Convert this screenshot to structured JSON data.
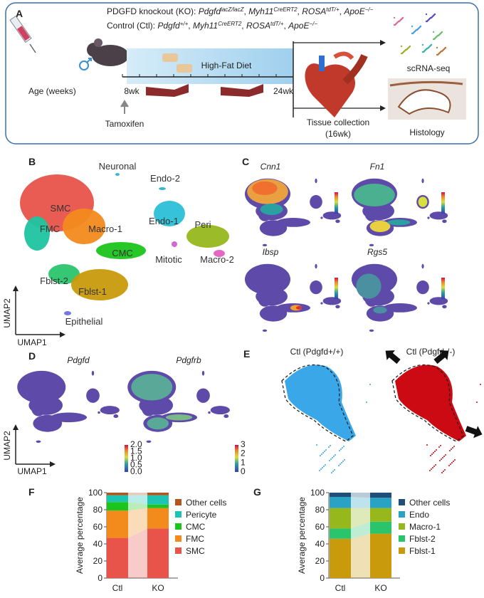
{
  "panel_a": {
    "letter": "A",
    "ko_line": [
      {
        "text": "PDGFD knockout (KO): ",
        "style": "plain"
      },
      {
        "text": "Pdgfd",
        "style": "italic"
      },
      {
        "text": "lacZ/lacZ",
        "style": "sup"
      },
      {
        "text": ", ",
        "style": "plain"
      },
      {
        "text": "Myh11",
        "style": "italic"
      },
      {
        "text": "CreERT2",
        "style": "sup"
      },
      {
        "text": ", ",
        "style": "plain"
      },
      {
        "text": "ROSA",
        "style": "italic"
      },
      {
        "text": "tdT/+",
        "style": "sup"
      },
      {
        "text": ", ",
        "style": "plain"
      },
      {
        "text": "ApoE",
        "style": "italic"
      },
      {
        "text": "−/−",
        "style": "sup"
      }
    ],
    "ctl_line": [
      {
        "text": "Control (Ctl): ",
        "style": "plain"
      },
      {
        "text": "Pdgfd",
        "style": "italic"
      },
      {
        "text": "+/+",
        "style": "sup"
      },
      {
        "text": ", ",
        "style": "plain"
      },
      {
        "text": "Myh11",
        "style": "italic"
      },
      {
        "text": "CreERT2",
        "style": "sup"
      },
      {
        "text": ", ",
        "style": "plain"
      },
      {
        "text": "ROSA",
        "style": "italic"
      },
      {
        "text": "tdT/+",
        "style": "sup"
      },
      {
        "text": ", ",
        "style": "plain"
      },
      {
        "text": "ApoE",
        "style": "italic"
      },
      {
        "text": "−/−",
        "style": "sup"
      }
    ],
    "diet": "High-Fat Diet",
    "age_label": "Age (weeks)",
    "start": "8wk",
    "end": "24wk",
    "injection": "Tamoxifen",
    "collection": "Tissue collection",
    "collection_time": "(16wk)",
    "scrna": "scRNA-seq",
    "histology": "Histology"
  },
  "panel_b": {
    "letter": "B",
    "clusters": [
      "Neuronal",
      "Endo-2",
      "SMC",
      "Endo-1",
      "Peri",
      "FMC",
      "Macro-1",
      "CMC",
      "Mitotic",
      "Macro-2",
      "Fblst-2",
      "Fblst-1",
      "Epithelial"
    ],
    "axis_x": "UMAP1",
    "axis_y": "UMAP2"
  },
  "panel_c": {
    "letter": "C",
    "genes": [
      "Cnn1",
      "Fn1",
      "Ibsp",
      "Rgs5"
    ]
  },
  "panel_d": {
    "letter": "D",
    "genes": [
      "Pdgfd",
      "Pdgfrb"
    ],
    "axis_x": "UMAP1",
    "axis_y": "UMAP2",
    "scale_labels": [
      [
        "2.0",
        "1.5",
        "1.0",
        "0.5",
        "0.0"
      ],
      [
        "3",
        "2",
        "1",
        "0"
      ]
    ]
  },
  "panel_e": {
    "letter": "E",
    "groups": [
      "Ctl (Pdgfd+/+)",
      "Ctl (Pdgfd-/-)"
    ]
  },
  "chart_data": [
    {
      "type": "bar",
      "stacked": true,
      "panel_label": "F",
      "ylabel": "Average percentage",
      "categories": [
        "Ctl",
        "KO"
      ],
      "ylim": [
        0,
        100
      ],
      "yticks": [
        0,
        20,
        40,
        60,
        80,
        100
      ],
      "series": [
        {
          "name": "SMC",
          "color": "#e8534a",
          "values": [
            47,
            58
          ]
        },
        {
          "name": "FMC",
          "color": "#f28a1c",
          "values": [
            32,
            24
          ]
        },
        {
          "name": "CMC",
          "color": "#1cc41c",
          "values": [
            10,
            4
          ]
        },
        {
          "name": "Pericyte",
          "color": "#1ec4b2",
          "values": [
            8,
            11
          ]
        },
        {
          "name": "Other cells",
          "color": "#b0561e",
          "values": [
            3,
            3
          ]
        }
      ]
    },
    {
      "type": "bar",
      "stacked": true,
      "panel_label": "G",
      "ylabel": "Average percentage",
      "categories": [
        "Ctl",
        "KO"
      ],
      "ylim": [
        0,
        100
      ],
      "yticks": [
        0,
        20,
        40,
        60,
        80,
        100
      ],
      "series": [
        {
          "name": "Fblst-1",
          "color": "#c99a0c",
          "values": [
            46,
            52
          ]
        },
        {
          "name": "Fblst-2",
          "color": "#2ac46c",
          "values": [
            12,
            14
          ]
        },
        {
          "name": "Macro-1",
          "color": "#96b81c",
          "values": [
            24,
            16
          ]
        },
        {
          "name": "Endo",
          "color": "#2aa2c4",
          "values": [
            13,
            12
          ]
        },
        {
          "name": "Other cells",
          "color": "#1f4e79",
          "values": [
            5,
            6
          ]
        }
      ]
    }
  ]
}
